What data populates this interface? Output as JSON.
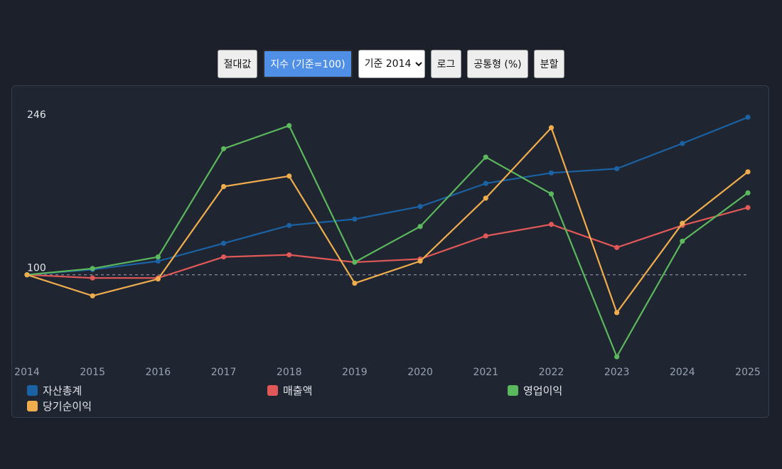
{
  "toolbar": {
    "absolute_label": "절대값",
    "index_label": "지수 (기준=100)",
    "base_select_value": "기준 2014",
    "base_select_options": [
      "기준 2014"
    ],
    "log_label": "로그",
    "common_size_label": "공통형 (%)",
    "split_label": "분할"
  },
  "chart_data": {
    "type": "line",
    "title": "",
    "xlabel": "",
    "ylabel": "",
    "x": [
      "2014",
      "2015",
      "2016",
      "2017",
      "2018",
      "2019",
      "2020",
      "2021",
      "2022",
      "2023",
      "2024",
      "2025"
    ],
    "y_ticks": [
      100,
      246
    ],
    "ylim": [
      20,
      252
    ],
    "baseline": 100,
    "grid": false,
    "legend": "bottom",
    "series": [
      {
        "name": "자산총계",
        "color": "#1a62a3",
        "values": [
          100,
          105,
          113,
          130,
          147,
          153,
          165,
          187,
          197,
          201,
          225,
          250
        ]
      },
      {
        "name": "매출액",
        "color": "#e05858",
        "values": [
          100,
          97,
          97,
          117,
          119,
          112,
          115,
          137,
          148,
          126,
          147,
          164
        ]
      },
      {
        "name": "영업이익",
        "color": "#5cb85c",
        "values": [
          100,
          106,
          117,
          220,
          242,
          112,
          146,
          212,
          177,
          22,
          132,
          178
        ]
      },
      {
        "name": "당기순이익",
        "color": "#f0ad4e",
        "values": [
          100,
          80,
          96,
          184,
          194,
          92,
          113,
          173,
          240,
          64,
          149,
          198
        ]
      }
    ]
  }
}
